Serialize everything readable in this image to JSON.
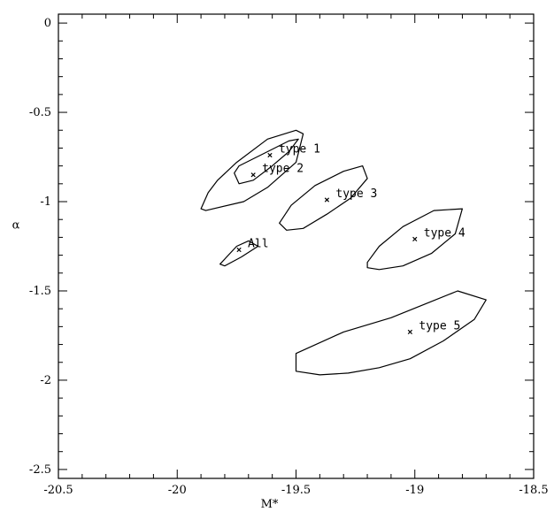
{
  "chart_data": {
    "type": "scatter",
    "title": "",
    "xlabel": "M*",
    "ylabel": "α",
    "xlim": [
      -20.5,
      -18.5
    ],
    "ylim": [
      -2.55,
      0.05
    ],
    "x_ticks": [
      -20.5,
      -20,
      -19.5,
      -19,
      -18.5
    ],
    "x_tick_labels": [
      "-20.5",
      "-20",
      "-19.5",
      "-19",
      "-18.5"
    ],
    "y_ticks": [
      0,
      -0.5,
      -1,
      -1.5,
      -2,
      -2.5
    ],
    "y_tick_labels": [
      "0",
      "-0.5",
      "-1",
      "-1.5",
      "-2",
      "-2.5"
    ],
    "grid": false,
    "series": [
      {
        "name": "type 1",
        "point": [
          -19.61,
          -0.74
        ],
        "contour": [
          [
            -19.9,
            -1.04
          ],
          [
            -19.87,
            -0.95
          ],
          [
            -19.83,
            -0.88
          ],
          [
            -19.75,
            -0.78
          ],
          [
            -19.62,
            -0.65
          ],
          [
            -19.5,
            -0.6
          ],
          [
            -19.47,
            -0.62
          ],
          [
            -19.5,
            -0.78
          ],
          [
            -19.62,
            -0.92
          ],
          [
            -19.72,
            -1.0
          ],
          [
            -19.88,
            -1.05
          ]
        ]
      },
      {
        "name": "type 2",
        "point": [
          -19.68,
          -0.85
        ],
        "contour": [
          [
            -19.74,
            -0.8
          ],
          [
            -19.62,
            -0.72
          ],
          [
            -19.53,
            -0.66
          ],
          [
            -19.49,
            -0.65
          ],
          [
            -19.53,
            -0.72
          ],
          [
            -19.6,
            -0.8
          ],
          [
            -19.68,
            -0.88
          ],
          [
            -19.74,
            -0.9
          ],
          [
            -19.76,
            -0.84
          ]
        ]
      },
      {
        "name": "type 3",
        "point": [
          -19.37,
          -0.99
        ],
        "contour": [
          [
            -19.57,
            -1.12
          ],
          [
            -19.52,
            -1.02
          ],
          [
            -19.42,
            -0.91
          ],
          [
            -19.3,
            -0.83
          ],
          [
            -19.22,
            -0.8
          ],
          [
            -19.2,
            -0.87
          ],
          [
            -19.27,
            -0.98
          ],
          [
            -19.37,
            -1.07
          ],
          [
            -19.47,
            -1.15
          ],
          [
            -19.54,
            -1.16
          ]
        ]
      },
      {
        "name": "type 4",
        "point": [
          -19.0,
          -1.21
        ],
        "contour": [
          [
            -19.2,
            -1.34
          ],
          [
            -19.15,
            -1.25
          ],
          [
            -19.05,
            -1.14
          ],
          [
            -18.92,
            -1.05
          ],
          [
            -18.8,
            -1.04
          ],
          [
            -18.83,
            -1.18
          ],
          [
            -18.93,
            -1.29
          ],
          [
            -19.05,
            -1.36
          ],
          [
            -19.15,
            -1.38
          ],
          [
            -19.2,
            -1.37
          ]
        ]
      },
      {
        "name": "type 5",
        "point": [
          -19.02,
          -1.73
        ],
        "contour": [
          [
            -19.5,
            -1.85
          ],
          [
            -19.3,
            -1.73
          ],
          [
            -19.1,
            -1.65
          ],
          [
            -18.95,
            -1.57
          ],
          [
            -18.82,
            -1.5
          ],
          [
            -18.7,
            -1.55
          ],
          [
            -18.75,
            -1.66
          ],
          [
            -18.88,
            -1.78
          ],
          [
            -19.02,
            -1.88
          ],
          [
            -19.15,
            -1.93
          ],
          [
            -19.28,
            -1.96
          ],
          [
            -19.4,
            -1.97
          ],
          [
            -19.5,
            -1.95
          ]
        ]
      },
      {
        "name": "All",
        "point": [
          -19.74,
          -1.27
        ],
        "contour": [
          [
            -19.82,
            -1.35
          ],
          [
            -19.75,
            -1.25
          ],
          [
            -19.7,
            -1.22
          ],
          [
            -19.66,
            -1.25
          ],
          [
            -19.73,
            -1.31
          ],
          [
            -19.8,
            -1.36
          ]
        ]
      }
    ]
  }
}
